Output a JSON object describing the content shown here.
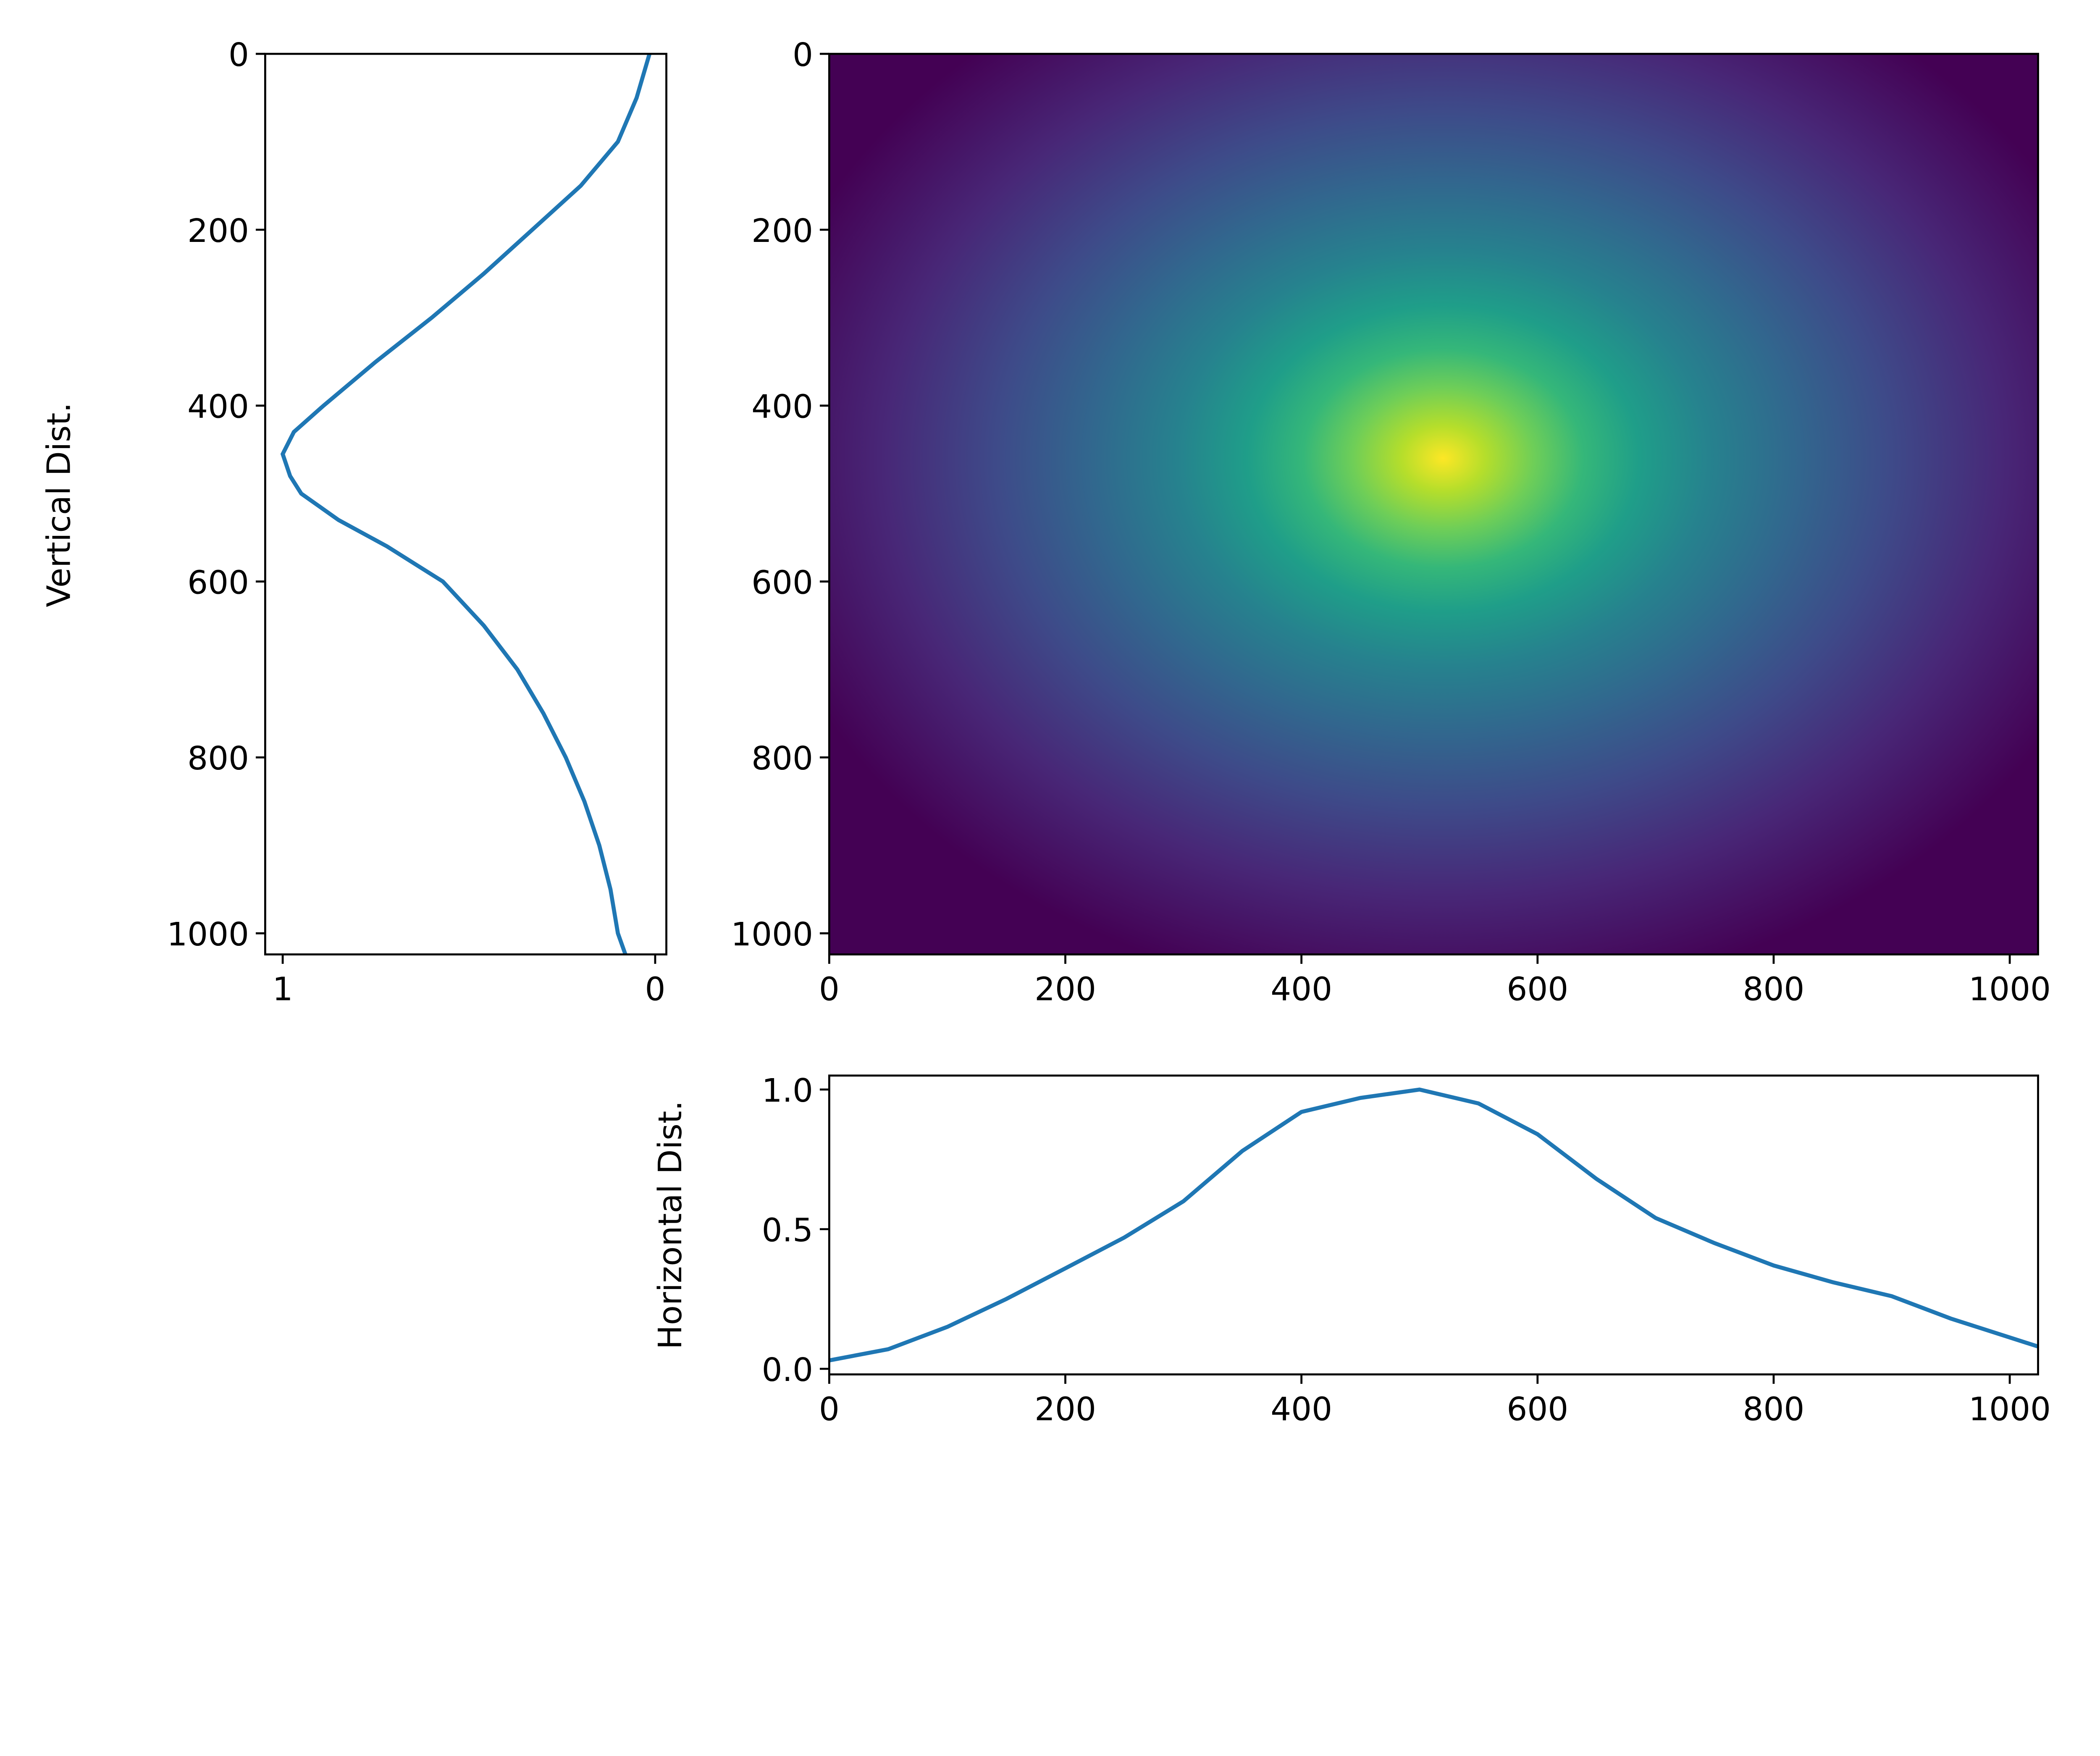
{
  "chart_data": [
    {
      "id": "vertical",
      "type": "line",
      "ylabel": "Vertical Dist.",
      "xlim": [
        1.047,
        -0.03
      ],
      "ylim": [
        1024,
        0
      ],
      "xticks": [
        1,
        0
      ],
      "yticks": [
        0,
        200,
        400,
        600,
        800,
        1000
      ],
      "x": [
        0.015,
        0.05,
        0.1,
        0.2,
        0.33,
        0.46,
        0.6,
        0.75,
        0.89,
        0.97,
        1.0,
        0.98,
        0.95,
        0.85,
        0.72,
        0.57,
        0.46,
        0.37,
        0.3,
        0.24,
        0.19,
        0.15,
        0.12,
        0.1,
        0.08
      ],
      "y": [
        0,
        50,
        100,
        150,
        200,
        250,
        300,
        350,
        400,
        430,
        455,
        480,
        500,
        530,
        560,
        600,
        650,
        700,
        750,
        800,
        850,
        900,
        950,
        1000,
        1024
      ],
      "color": "#1f77b4"
    },
    {
      "id": "heatmap",
      "type": "heatmap",
      "xlim": [
        0,
        1024
      ],
      "ylim": [
        1024,
        0
      ],
      "xticks": [
        0,
        200,
        400,
        600,
        800,
        1000
      ],
      "yticks": [
        0,
        200,
        400,
        600,
        800,
        1000
      ],
      "peak": {
        "x": 520,
        "y": 460
      },
      "colormap": [
        "#440154",
        "#482777",
        "#3e4a89",
        "#31688e",
        "#26828e",
        "#1f9e89",
        "#35b779",
        "#6ece58",
        "#b5de2b",
        "#fde725"
      ]
    },
    {
      "id": "horizontal",
      "type": "line",
      "ylabel": "Horizontal Dist.",
      "xlim": [
        0,
        1024
      ],
      "ylim": [
        -0.02,
        1.05
      ],
      "xticks": [
        0,
        200,
        400,
        600,
        800,
        1000
      ],
      "yticks": [
        "0.0",
        "0.5",
        "1.0"
      ],
      "x": [
        0,
        50,
        100,
        150,
        200,
        250,
        300,
        350,
        400,
        450,
        500,
        550,
        600,
        650,
        700,
        750,
        800,
        850,
        900,
        950,
        1024
      ],
      "y": [
        0.03,
        0.07,
        0.15,
        0.25,
        0.36,
        0.47,
        0.6,
        0.78,
        0.92,
        0.97,
        1.0,
        0.95,
        0.84,
        0.68,
        0.54,
        0.45,
        0.37,
        0.31,
        0.26,
        0.18,
        0.08
      ],
      "color": "#1f77b4"
    }
  ]
}
